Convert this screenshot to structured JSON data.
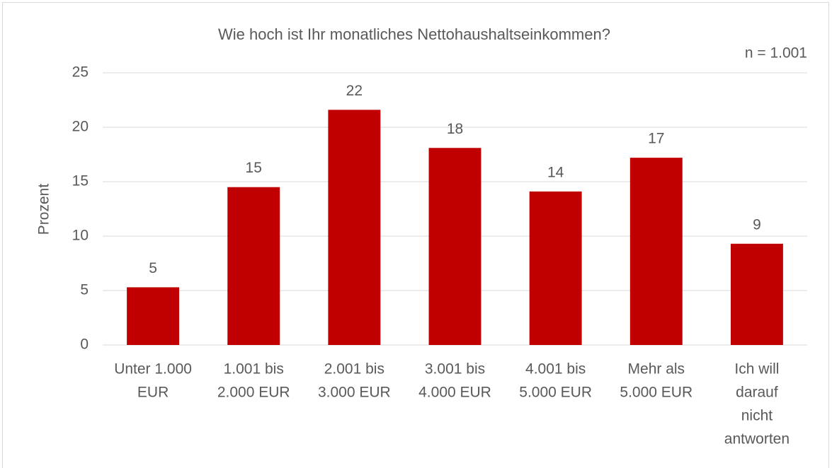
{
  "chart_data": {
    "type": "bar",
    "title": "Wie hoch ist Ihr monatliches Nettohaushaltseinkommen?",
    "annotation": "n = 1.001",
    "y_label": "Prozent",
    "categories": [
      [
        "Unter 1.000",
        "EUR"
      ],
      [
        "1.001 bis",
        "2.000 EUR"
      ],
      [
        "2.001 bis",
        "3.000 EUR"
      ],
      [
        "3.001 bis",
        "4.000 EUR"
      ],
      [
        "4.001 bis",
        "5.000 EUR"
      ],
      [
        "Mehr als",
        "5.000 EUR"
      ],
      [
        "Ich will",
        "darauf",
        "nicht",
        "antworten"
      ]
    ],
    "values": [
      5.3,
      14.5,
      21.6,
      18.1,
      14.1,
      17.2,
      9.3
    ],
    "value_labels": [
      "5",
      "15",
      "22",
      "18",
      "14",
      "17",
      "9"
    ],
    "color": "#c00000",
    "ylim": [
      0,
      25
    ],
    "yticks": [
      0,
      5,
      10,
      15,
      20,
      25
    ],
    "grid": true
  }
}
